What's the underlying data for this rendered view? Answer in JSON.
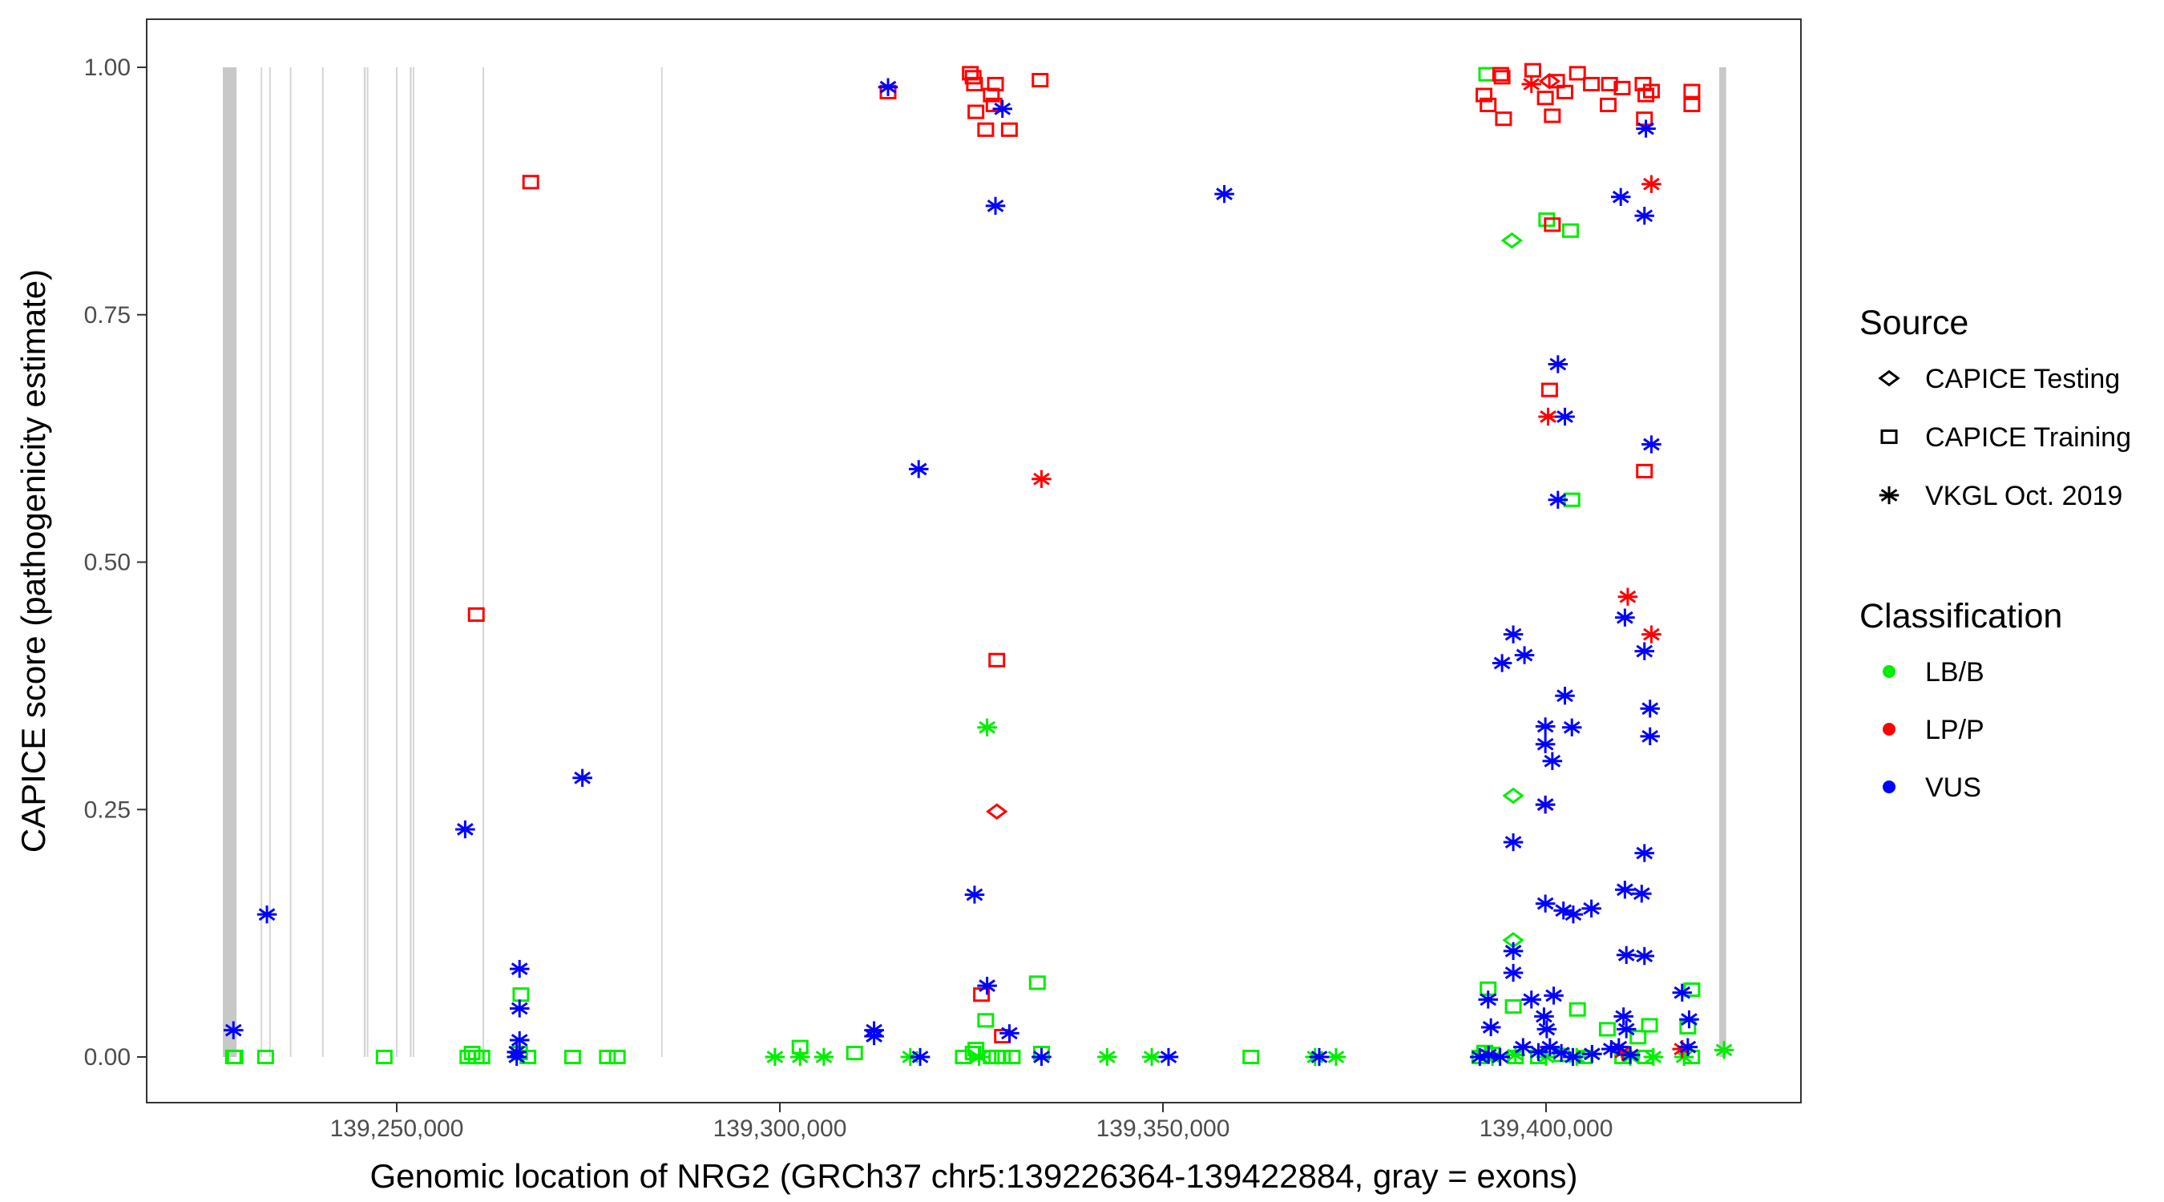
{
  "chart_data": {
    "type": "scatter",
    "title": "",
    "xlabel": "Genomic location of NRG2 (GRCh37 chr5:139226364-139422884, gray = exons)",
    "ylabel": "CAPICE score (pathogenicity estimate)",
    "xlim": [
      139216000,
      139428000
    ],
    "ylim": [
      -0.045,
      1.045
    ],
    "x_ticks": [
      139250000,
      139300000,
      139350000,
      139400000
    ],
    "x_tick_labels": [
      "139,250,000",
      "139,300,000",
      "139,350,000",
      "139,400,000"
    ],
    "y_ticks": [
      0,
      0.25,
      0.5,
      0.75,
      1
    ],
    "y_tick_labels": [
      "0.00",
      "0.25",
      "0.50",
      "0.75",
      "1.00"
    ],
    "grid": false,
    "legend_placement": "right",
    "exons": [
      [
        139227300,
        139229100
      ],
      [
        139232250,
        139232450
      ],
      [
        139233350,
        139233550
      ],
      [
        139236050,
        139236250
      ],
      [
        139240250,
        139240450
      ],
      [
        139245700,
        139245950
      ],
      [
        139246100,
        139246300
      ],
      [
        139249900,
        139250100
      ],
      [
        139251700,
        139251950
      ],
      [
        139252100,
        139252300
      ],
      [
        139261200,
        139261400
      ],
      [
        139284500,
        139284700
      ],
      [
        139422600,
        139423500
      ]
    ],
    "exon_color": "#c8c8c8",
    "legend": {
      "source_title": "Source",
      "sources": [
        {
          "name": "CAPICE Testing",
          "shape": "diamond"
        },
        {
          "name": "CAPICE Training",
          "shape": "square"
        },
        {
          "name": "VKGL Oct. 2019",
          "shape": "asterisk"
        }
      ],
      "classification_title": "Classification",
      "classifications": [
        {
          "name": "LB/B",
          "color": "#00ee00"
        },
        {
          "name": "LP/P",
          "color": "#ff0000"
        },
        {
          "name": "VUS",
          "color": "#0000ff"
        }
      ]
    },
    "series": [
      {
        "source": "CAPICE Training",
        "classification": "LB/B",
        "points": [
          [
            139228690,
            0
          ],
          [
            139228900,
            0
          ],
          [
            139232880,
            0
          ],
          [
            139248360,
            0
          ],
          [
            139259290,
            0
          ],
          [
            139259840,
            0.004
          ],
          [
            139260380,
            0
          ],
          [
            139261110,
            0
          ],
          [
            139266210,
            0.063
          ],
          [
            139266030,
            0.004
          ],
          [
            139267120,
            0
          ],
          [
            139272950,
            0
          ],
          [
            139277500,
            0
          ],
          [
            139278780,
            0
          ],
          [
            139302640,
            0.01
          ],
          [
            139309750,
            0.004
          ],
          [
            139323950,
            0
          ],
          [
            139325230,
            0.004
          ],
          [
            139325590,
            0.008
          ],
          [
            139326870,
            0.037
          ],
          [
            139327600,
            0
          ],
          [
            139328320,
            0
          ],
          [
            139329050,
            0
          ],
          [
            139330330,
            0
          ],
          [
            139333610,
            0.075
          ],
          [
            139334150,
            0.004
          ],
          [
            139361480,
            0
          ],
          [
            139392260,
            0.993
          ],
          [
            139400090,
            0.846
          ],
          [
            139403190,
            0.835
          ],
          [
            139403370,
            0.563
          ],
          [
            139392440,
            0.069
          ],
          [
            139395720,
            0.051
          ],
          [
            139404100,
            0.048
          ],
          [
            139419030,
            0.068
          ],
          [
            139391350,
            0
          ],
          [
            139393000,
            0.003
          ],
          [
            139396000,
            0
          ],
          [
            139399000,
            0
          ],
          [
            139402000,
            0.002
          ],
          [
            139405000,
            0
          ],
          [
            139408000,
            0.028
          ],
          [
            139410000,
            0
          ],
          [
            139412000,
            0.02
          ],
          [
            139413500,
            0.032
          ],
          [
            139418500,
            0.03
          ],
          [
            139419000,
            0
          ],
          [
            139392000,
            0.005
          ],
          [
            139413000,
            0
          ]
        ]
      },
      {
        "source": "CAPICE Training",
        "classification": "LP/P",
        "points": [
          [
            139260380,
            0.447
          ],
          [
            139267490,
            0.884
          ],
          [
            139314120,
            0.975
          ],
          [
            139324860,
            0.994
          ],
          [
            139325230,
            0.99
          ],
          [
            139325410,
            0.983
          ],
          [
            139325590,
            0.955
          ],
          [
            139326870,
            0.937
          ],
          [
            139327600,
            0.972
          ],
          [
            139328140,
            0.983
          ],
          [
            139327960,
            0.962
          ],
          [
            139329960,
            0.937
          ],
          [
            139333970,
            0.987
          ],
          [
            139328320,
            0.401
          ],
          [
            139326320,
            0.063
          ],
          [
            139329050,
            0.021
          ],
          [
            139391900,
            0.972
          ],
          [
            139392440,
            0.962
          ],
          [
            139394080,
            0.993
          ],
          [
            139394260,
            0.99
          ],
          [
            139394450,
            0.948
          ],
          [
            139398270,
            0.997
          ],
          [
            139399910,
            0.969
          ],
          [
            139400820,
            0.951
          ],
          [
            139401370,
            0.986
          ],
          [
            139402460,
            0.975
          ],
          [
            139404100,
            0.994
          ],
          [
            139405920,
            0.983
          ],
          [
            139408110,
            0.962
          ],
          [
            139408290,
            0.983
          ],
          [
            139409930,
            0.979
          ],
          [
            139412660,
            0.983
          ],
          [
            139413030,
            0.972
          ],
          [
            139413750,
            0.976
          ],
          [
            139412840,
            0.948
          ],
          [
            139419030,
            0.976
          ],
          [
            139419030,
            0.962
          ],
          [
            139400820,
            0.841
          ],
          [
            139400460,
            0.674
          ],
          [
            139412840,
            0.592
          ]
        ]
      },
      {
        "source": "CAPICE Testing",
        "classification": "LB/B",
        "points": [
          [
            139395540,
            0.825
          ],
          [
            139395720,
            0.264
          ],
          [
            139395720,
            0.118
          ]
        ]
      },
      {
        "source": "CAPICE Testing",
        "classification": "LP/P",
        "points": [
          [
            139328320,
            0.248
          ],
          [
            139400460,
            0.986
          ]
        ]
      },
      {
        "source": "VKGL Oct. 2019",
        "classification": "LB/B",
        "points": [
          [
            139299360,
            0
          ],
          [
            139302640,
            0
          ],
          [
            139305740,
            0
          ],
          [
            139317030,
            0
          ],
          [
            139327050,
            0.333
          ],
          [
            139326000,
            0
          ],
          [
            139342710,
            0
          ],
          [
            139348540,
            0
          ],
          [
            139369850,
            0
          ],
          [
            139372590,
            0
          ],
          [
            139423230,
            0.007
          ],
          [
            139393000,
            0
          ],
          [
            139396000,
            0.002
          ],
          [
            139400000,
            0
          ],
          [
            139404000,
            0
          ],
          [
            139406000,
            0.003
          ],
          [
            139411000,
            0
          ],
          [
            139414000,
            0
          ],
          [
            139418000,
            0
          ]
        ]
      },
      {
        "source": "VKGL Oct. 2019",
        "classification": "LP/P",
        "points": [
          [
            139334150,
            0.584
          ],
          [
            139398090,
            0.983
          ],
          [
            139413750,
            0.882
          ],
          [
            139400270,
            0.647
          ],
          [
            139410660,
            0.465
          ],
          [
            139413750,
            0.427
          ],
          [
            139399910,
            0.255
          ],
          [
            139410000,
            0.005
          ],
          [
            139417760,
            0.008
          ]
        ]
      },
      {
        "source": "VKGL Oct. 2019",
        "classification": "VUS",
        "points": [
          [
            139228690,
            0.027
          ],
          [
            139233060,
            0.144
          ],
          [
            139258930,
            0.23
          ],
          [
            139274230,
            0.282
          ],
          [
            139266030,
            0.089
          ],
          [
            139266030,
            0.049
          ],
          [
            139266030,
            0.017
          ],
          [
            139265660,
            0.005
          ],
          [
            139265660,
            0
          ],
          [
            139312300,
            0.027
          ],
          [
            139312300,
            0.021
          ],
          [
            139318310,
            0
          ],
          [
            139314120,
            0.98
          ],
          [
            139318120,
            0.594
          ],
          [
            139329050,
            0.958
          ],
          [
            139328140,
            0.86
          ],
          [
            139325410,
            0.164
          ],
          [
            139327050,
            0.072
          ],
          [
            139329960,
            0.024
          ],
          [
            139334150,
            0
          ],
          [
            139350730,
            0
          ],
          [
            139358010,
            0.872
          ],
          [
            139370400,
            0
          ],
          [
            139413030,
            0.938
          ],
          [
            139409750,
            0.869
          ],
          [
            139412840,
            0.85
          ],
          [
            139401550,
            0.7
          ],
          [
            139402460,
            0.647
          ],
          [
            139413750,
            0.619
          ],
          [
            139401550,
            0.563
          ],
          [
            139410290,
            0.444
          ],
          [
            139412840,
            0.41
          ],
          [
            139395720,
            0.427
          ],
          [
            139394260,
            0.398
          ],
          [
            139397180,
            0.406
          ],
          [
            139402460,
            0.365
          ],
          [
            139403370,
            0.333
          ],
          [
            139399910,
            0.334
          ],
          [
            139399910,
            0.316
          ],
          [
            139400820,
            0.299
          ],
          [
            139413570,
            0.352
          ],
          [
            139413570,
            0.324
          ],
          [
            139399910,
            0.255
          ],
          [
            139395720,
            0.217
          ],
          [
            139412840,
            0.206
          ],
          [
            139399910,
            0.155
          ],
          [
            139402270,
            0.148
          ],
          [
            139403550,
            0.144
          ],
          [
            139405920,
            0.15
          ],
          [
            139410290,
            0.169
          ],
          [
            139412480,
            0.165
          ],
          [
            139395720,
            0.107
          ],
          [
            139395720,
            0.085
          ],
          [
            139410480,
            0.103
          ],
          [
            139412840,
            0.102
          ],
          [
            139392440,
            0.058
          ],
          [
            139398090,
            0.058
          ],
          [
            139401000,
            0.062
          ],
          [
            139417760,
            0.065
          ],
          [
            139418670,
            0.038
          ],
          [
            139392800,
            0.03
          ],
          [
            139399730,
            0.041
          ],
          [
            139400090,
            0.028
          ],
          [
            139410110,
            0.041
          ],
          [
            139410480,
            0.028
          ],
          [
            139391350,
            0
          ],
          [
            139392500,
            0.002
          ],
          [
            139394000,
            0
          ],
          [
            139397000,
            0.01
          ],
          [
            139399000,
            0.005
          ],
          [
            139400500,
            0.01
          ],
          [
            139402000,
            0.004
          ],
          [
            139403500,
            0
          ],
          [
            139406000,
            0.003
          ],
          [
            139408500,
            0.008
          ],
          [
            139409500,
            0.01
          ],
          [
            139411000,
            0.002
          ],
          [
            139418500,
            0.01
          ]
        ]
      }
    ]
  }
}
